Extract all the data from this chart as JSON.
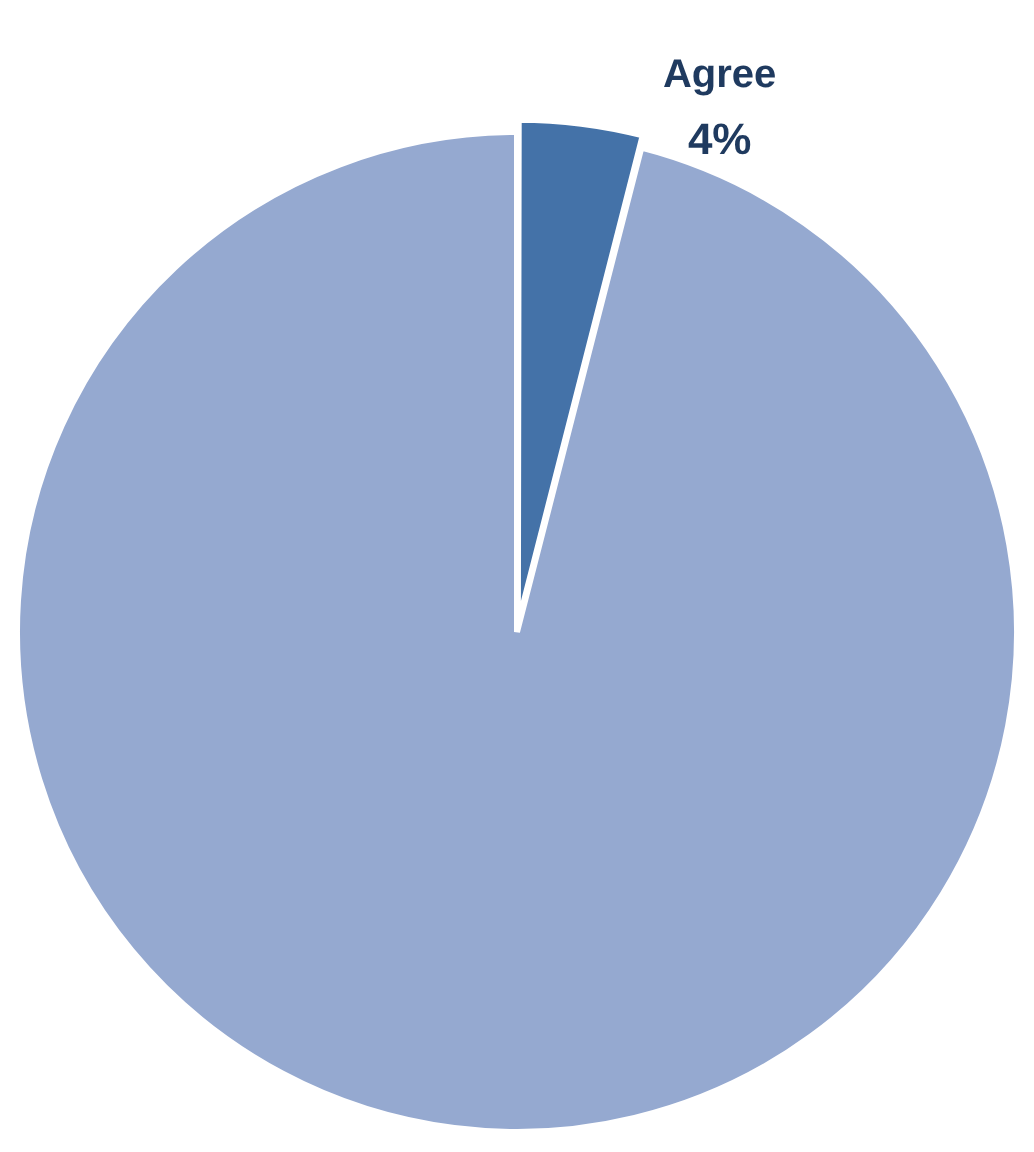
{
  "chart_data": {
    "type": "pie",
    "categories": [
      "Agree",
      null
    ],
    "values": [
      4,
      96
    ],
    "colors": [
      "#4472a8",
      "#95a9d0"
    ],
    "value_labels": [
      "4%",
      null
    ],
    "legend": false
  }
}
